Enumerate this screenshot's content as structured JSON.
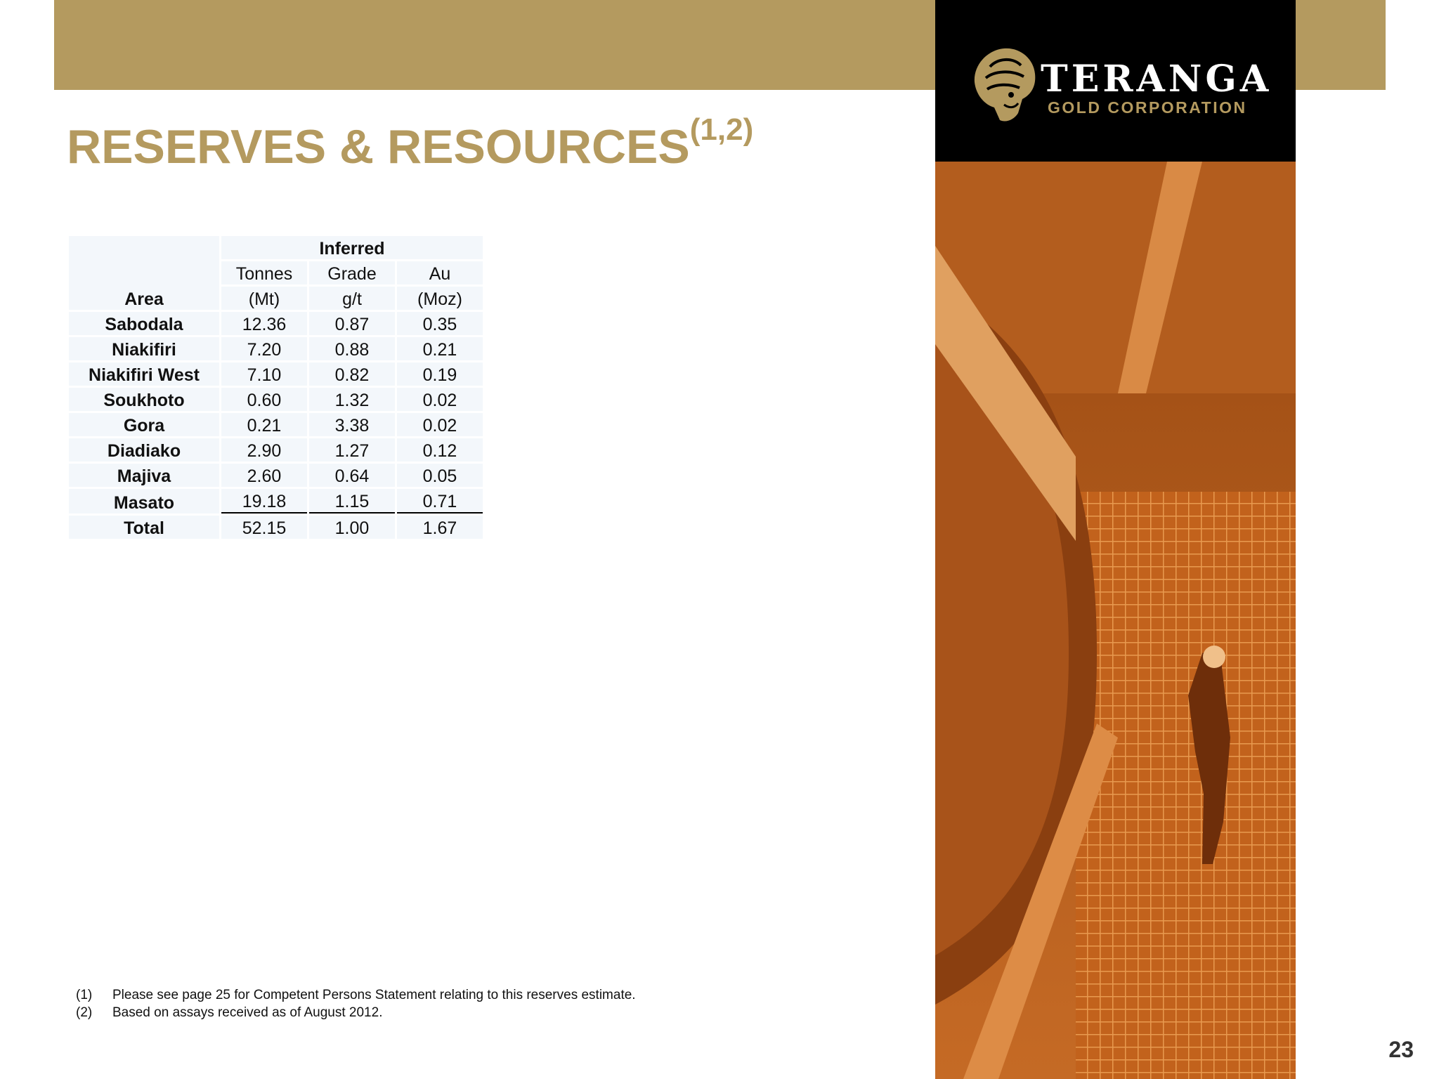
{
  "header": {
    "brand_name": "TERANGA",
    "brand_sub": "GOLD CORPORATION",
    "colors": {
      "gold": "#b49a5f",
      "black": "#000000",
      "photo_tint": "#c9641e"
    }
  },
  "slide": {
    "title": "RESERVES & RESOURCES",
    "title_superscript": "(1,2)",
    "page_number": "23"
  },
  "table": {
    "area_header": "Area",
    "group_header": "Inferred",
    "columns": [
      {
        "name": "Tonnes",
        "unit": "(Mt)"
      },
      {
        "name": "Grade",
        "unit": "g/t"
      },
      {
        "name": "Au",
        "unit": "(Moz)"
      }
    ],
    "rows": [
      {
        "area": "Sabodala",
        "values": [
          "12.36",
          "0.87",
          "0.35"
        ]
      },
      {
        "area": "Niakifiri",
        "values": [
          "7.20",
          "0.88",
          "0.21"
        ]
      },
      {
        "area": "Niakifiri West",
        "values": [
          "7.10",
          "0.82",
          "0.19"
        ]
      },
      {
        "area": "Soukhoto",
        "values": [
          "0.60",
          "1.32",
          "0.02"
        ]
      },
      {
        "area": "Gora",
        "values": [
          "0.21",
          "3.38",
          "0.02"
        ]
      },
      {
        "area": "Diadiako",
        "values": [
          "2.90",
          "1.27",
          "0.12"
        ]
      },
      {
        "area": "Majiva",
        "values": [
          "2.60",
          "0.64",
          "0.05"
        ]
      },
      {
        "area": "Masato",
        "values": [
          "19.18",
          "1.15",
          "0.71"
        ]
      },
      {
        "area": "Total",
        "values": [
          "52.15",
          "1.00",
          "1.67"
        ]
      }
    ]
  },
  "footnotes": [
    {
      "num": "(1)",
      "text": "Please see page 25 for Competent Persons Statement relating to this reserves estimate."
    },
    {
      "num": "(2)",
      "text": "Based on assays received as of August 2012."
    }
  ]
}
